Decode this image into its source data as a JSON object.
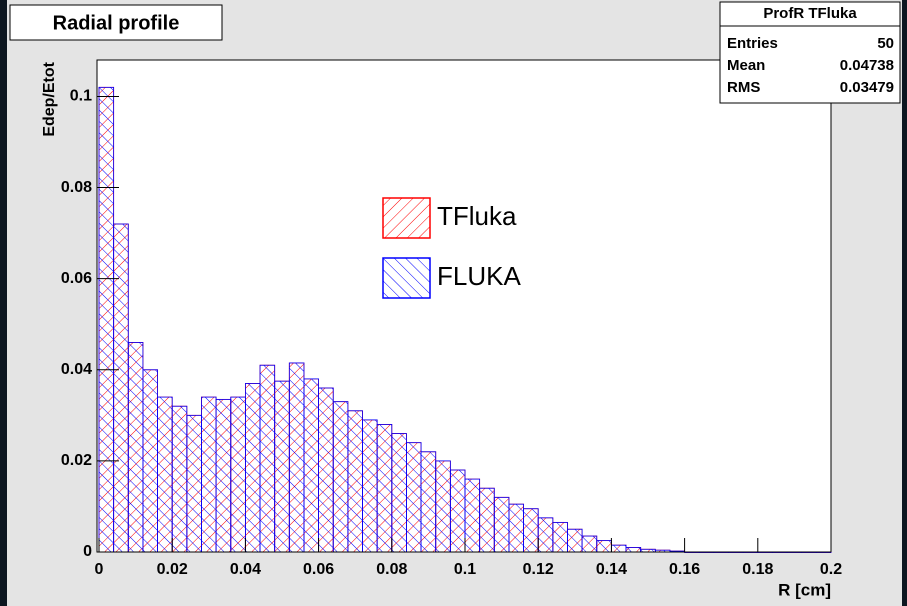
{
  "chart_data": {
    "type": "histogram",
    "title": "Radial profile",
    "xlabel": "R [cm]",
    "ylabel": "Edep/Etot",
    "bins": [
      0,
      0.004,
      0.008,
      0.012,
      0.016,
      0.02,
      0.024,
      0.028,
      0.032,
      0.036,
      0.04,
      0.044,
      0.048,
      0.052,
      0.056,
      0.06,
      0.064,
      0.068,
      0.072,
      0.076,
      0.08,
      0.084,
      0.088,
      0.092,
      0.096,
      0.1,
      0.104,
      0.108,
      0.112,
      0.116,
      0.12,
      0.124,
      0.128,
      0.132,
      0.136,
      0.14,
      0.144,
      0.148,
      0.152,
      0.156,
      0.16,
      0.164,
      0.168,
      0.172,
      0.176,
      0.18,
      0.184,
      0.188,
      0.192,
      0.196,
      0.2
    ],
    "series": [
      {
        "name": "TFluka",
        "color": "#ff0000",
        "values": [
          0.102,
          0.072,
          0.046,
          0.04,
          0.034,
          0.032,
          0.03,
          0.034,
          0.0335,
          0.034,
          0.037,
          0.041,
          0.0375,
          0.0415,
          0.038,
          0.036,
          0.033,
          0.031,
          0.029,
          0.028,
          0.026,
          0.024,
          0.022,
          0.02,
          0.018,
          0.016,
          0.014,
          0.012,
          0.0105,
          0.0095,
          0.0075,
          0.0065,
          0.005,
          0.0035,
          0.0025,
          0.0015,
          0.001,
          0.0006,
          0.0004,
          0.0002,
          0,
          0,
          0,
          0,
          0,
          0,
          0,
          0,
          0,
          0
        ]
      },
      {
        "name": "FLUKA",
        "color": "#0000ff",
        "values": [
          0.102,
          0.072,
          0.046,
          0.04,
          0.034,
          0.032,
          0.03,
          0.034,
          0.0335,
          0.034,
          0.037,
          0.041,
          0.0375,
          0.0415,
          0.038,
          0.036,
          0.033,
          0.031,
          0.029,
          0.028,
          0.026,
          0.024,
          0.022,
          0.02,
          0.018,
          0.016,
          0.014,
          0.012,
          0.0105,
          0.0095,
          0.0075,
          0.0065,
          0.005,
          0.0035,
          0.0025,
          0.0015,
          0.001,
          0.0006,
          0.0004,
          0.0002,
          0,
          0,
          0,
          0,
          0,
          0,
          0,
          0,
          0,
          0
        ]
      }
    ],
    "xlim": [
      0,
      0.2
    ],
    "xticks": [
      0,
      0.02,
      0.04,
      0.06,
      0.08,
      0.1,
      0.12,
      0.14,
      0.16,
      0.18,
      0.2
    ],
    "ylim": [
      0,
      0.108
    ],
    "yticks": [
      0,
      0.02,
      0.04,
      0.06,
      0.08,
      0.1
    ],
    "legend": "center",
    "stats": {
      "title": "ProfR TFluka",
      "rows": [
        [
          "Entries",
          50
        ],
        [
          "Mean",
          0.04738
        ],
        [
          "RMS",
          0.03479
        ]
      ]
    }
  }
}
